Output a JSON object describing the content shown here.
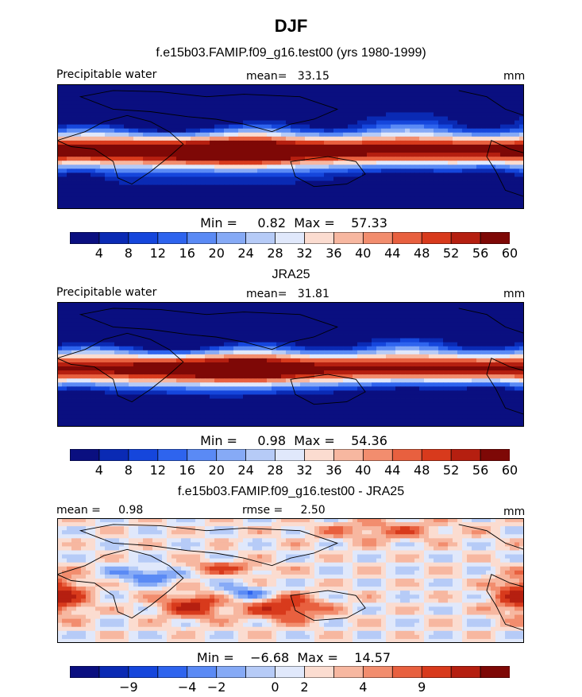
{
  "title": "DJF",
  "panels": [
    {
      "subtitle": "f.e15b03.FAMIP.f09_g16.test00 (yrs 1980-1999)",
      "left_label": "Precipitable water",
      "center_label": "mean=   33.15",
      "right_label": "mm",
      "stats": "Min =     0.82  Max =    57.33",
      "field": "precipitable-water-model",
      "colorbar_ticks": [
        "4",
        "8",
        "12",
        "16",
        "20",
        "24",
        "28",
        "32",
        "36",
        "40",
        "44",
        "48",
        "52",
        "56",
        "60"
      ]
    },
    {
      "subtitle": "JRA25",
      "left_label": "Precipitable water",
      "center_label": "mean=   31.81",
      "right_label": "mm",
      "stats": "Min =     0.98  Max =    54.36",
      "field": "precipitable-water-obs",
      "colorbar_ticks": [
        "4",
        "8",
        "12",
        "16",
        "20",
        "24",
        "28",
        "32",
        "36",
        "40",
        "44",
        "48",
        "52",
        "56",
        "60"
      ]
    },
    {
      "subtitle": "f.e15b03.FAMIP.f09_g16.test00 - JRA25",
      "left_label": "mean =     0.98",
      "center_label": "rmse =     2.50",
      "right_label": "mm",
      "stats": "Min =    −6.68  Max =    14.57",
      "field": "difference",
      "colorbar_ticks": [
        "−9",
        "−4",
        "−2",
        "0",
        "2",
        "4",
        "9"
      ]
    }
  ],
  "colors": {
    "palette": [
      "#0a0f80",
      "#0a2ab4",
      "#1546dc",
      "#2e64ee",
      "#5a8af5",
      "#86aaf6",
      "#b6cbf7",
      "#e0e8fb",
      "#fbdcd0",
      "#f7b7a0",
      "#f28d6e",
      "#e8603f",
      "#d83a1c",
      "#b51f10",
      "#7e0806"
    ],
    "coast": "#000000",
    "frame": "#000000"
  }
}
